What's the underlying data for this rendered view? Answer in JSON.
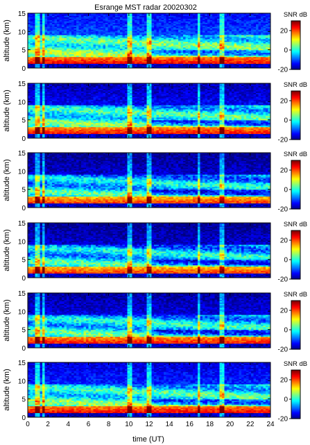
{
  "chart_data": {
    "type": "heatmap",
    "title": "Esrange MST radar 20020302",
    "xlabel": "time (UT)",
    "ylabel": "altitude (km)",
    "x_ticks": [
      "0",
      "2",
      "4",
      "6",
      "8",
      "10",
      "12",
      "14",
      "16",
      "18",
      "20",
      "22",
      "24"
    ],
    "y_ticks": [
      "0",
      "5",
      "10",
      "15"
    ],
    "xlim": [
      0,
      24
    ],
    "ylim": [
      0,
      15
    ],
    "colorbar": {
      "label": "SNR dB",
      "ticks": [
        "20",
        "0",
        "-20"
      ],
      "range": [
        -20,
        30
      ],
      "colormap": "jet"
    },
    "panels": [
      {
        "id": 1,
        "description_level": {
          "bottom_snr_db": 25,
          "mid_snr_db": 5,
          "top_snr_db": -10
        }
      },
      {
        "id": 2,
        "description_level": {
          "bottom_snr_db": 24,
          "mid_snr_db": 3,
          "top_snr_db": -14
        }
      },
      {
        "id": 3,
        "description_level": {
          "bottom_snr_db": 22,
          "mid_snr_db": 0,
          "top_snr_db": -16
        }
      },
      {
        "id": 4,
        "description_level": {
          "bottom_snr_db": 22,
          "mid_snr_db": 0,
          "top_snr_db": -16
        }
      },
      {
        "id": 5,
        "description_level": {
          "bottom_snr_db": 24,
          "mid_snr_db": 1,
          "top_snr_db": -15
        }
      },
      {
        "id": 6,
        "description_level": {
          "bottom_snr_db": 25,
          "mid_snr_db": 3,
          "top_snr_db": -12
        }
      }
    ]
  }
}
